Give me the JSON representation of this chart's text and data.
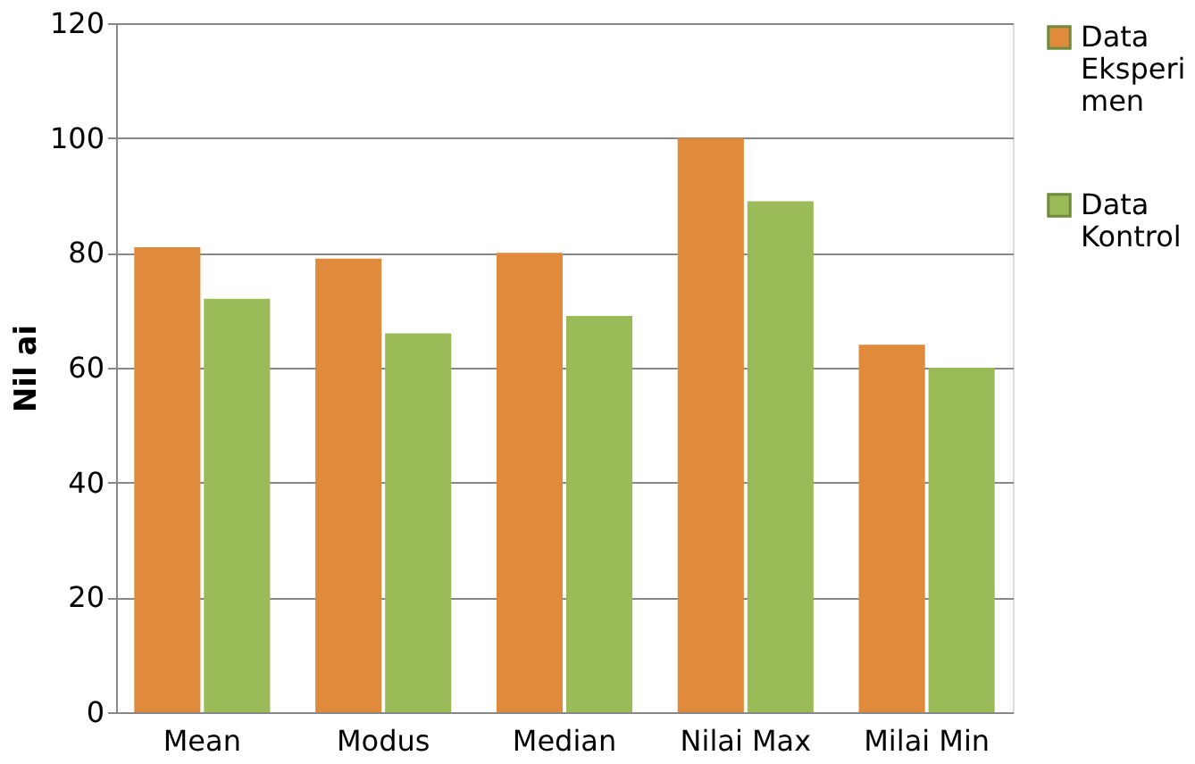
{
  "chart_data": {
    "type": "bar",
    "ylabel": "Nil ai",
    "categories": [
      "Mean",
      "Modus",
      "Median",
      "Nilai Max",
      "Milai Min"
    ],
    "series": [
      {
        "name": "Data Eksperimen",
        "color": "#e08a3c",
        "values": [
          81,
          79,
          80,
          100,
          64
        ]
      },
      {
        "name": "Data Kontrol",
        "color": "#9bbb59",
        "values": [
          72,
          66,
          69,
          89,
          60
        ]
      }
    ],
    "ylim": [
      0,
      120
    ],
    "yticks": [
      0,
      20,
      40,
      60,
      80,
      100,
      120
    ],
    "grid": "y",
    "legend": "right"
  }
}
